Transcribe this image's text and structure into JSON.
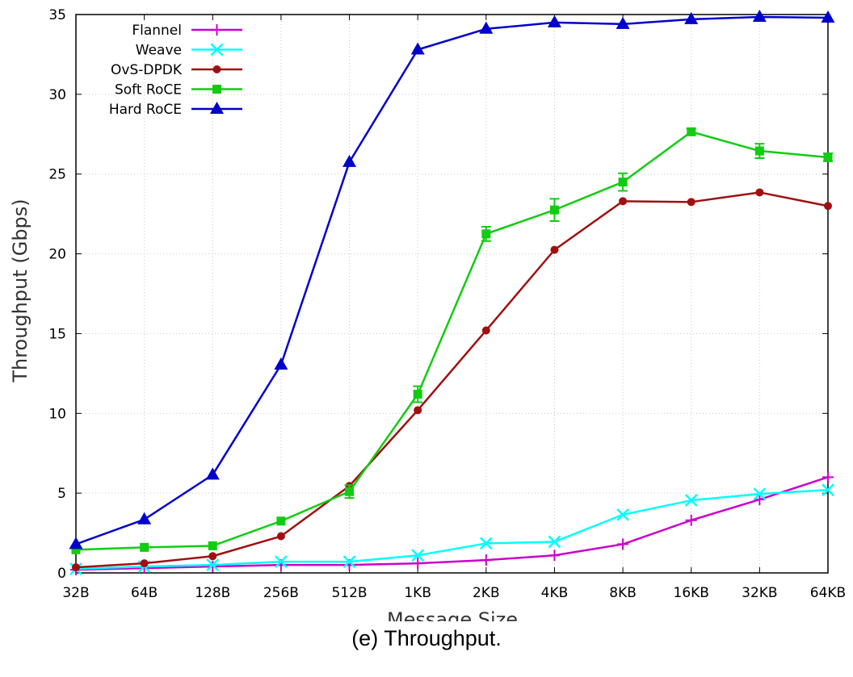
{
  "caption": "(e) Throughput.",
  "chart_data": {
    "type": "line",
    "title": "",
    "xlabel": "Message Size",
    "ylabel": "Throughput (Gbps)",
    "categories": [
      "32B",
      "64B",
      "128B",
      "256B",
      "512B",
      "1KB",
      "2KB",
      "4KB",
      "8KB",
      "16KB",
      "32KB",
      "64KB"
    ],
    "ylim": [
      0,
      35
    ],
    "yticks": [
      0,
      5,
      10,
      15,
      20,
      25,
      30,
      35
    ],
    "grid": true,
    "legend_position": "top-left",
    "series": [
      {
        "name": "Flannel",
        "color": "#cc00cc",
        "marker": "plus",
        "values": [
          0.2,
          0.3,
          0.4,
          0.5,
          0.5,
          0.6,
          0.8,
          1.1,
          1.8,
          3.3,
          4.6,
          6.0
        ]
      },
      {
        "name": "Weave",
        "color": "#00ffff",
        "marker": "cross",
        "values": [
          0.25,
          0.4,
          0.5,
          0.7,
          0.7,
          1.1,
          1.85,
          1.95,
          3.65,
          4.55,
          4.95,
          5.2
        ]
      },
      {
        "name": "OvS-DPDK",
        "color": "#a01010",
        "marker": "circle",
        "values": [
          0.35,
          0.6,
          1.05,
          2.3,
          5.45,
          10.2,
          15.2,
          20.25,
          23.3,
          23.25,
          23.85,
          23.0
        ]
      },
      {
        "name": "Soft RoCE",
        "color": "#11cc11",
        "marker": "square",
        "values": [
          1.45,
          1.6,
          1.7,
          3.25,
          5.1,
          11.2,
          21.25,
          22.75,
          24.5,
          27.65,
          26.45,
          26.05
        ],
        "errors": [
          0,
          0,
          0,
          0,
          0.4,
          0.5,
          0.45,
          0.7,
          0.55,
          0.2,
          0.45,
          0.25
        ]
      },
      {
        "name": "Hard RoCE",
        "color": "#0000cc",
        "marker": "triangle",
        "values": [
          1.8,
          3.35,
          6.15,
          13.05,
          25.75,
          32.8,
          34.1,
          34.5,
          34.4,
          34.7,
          34.85,
          34.8
        ]
      }
    ]
  }
}
